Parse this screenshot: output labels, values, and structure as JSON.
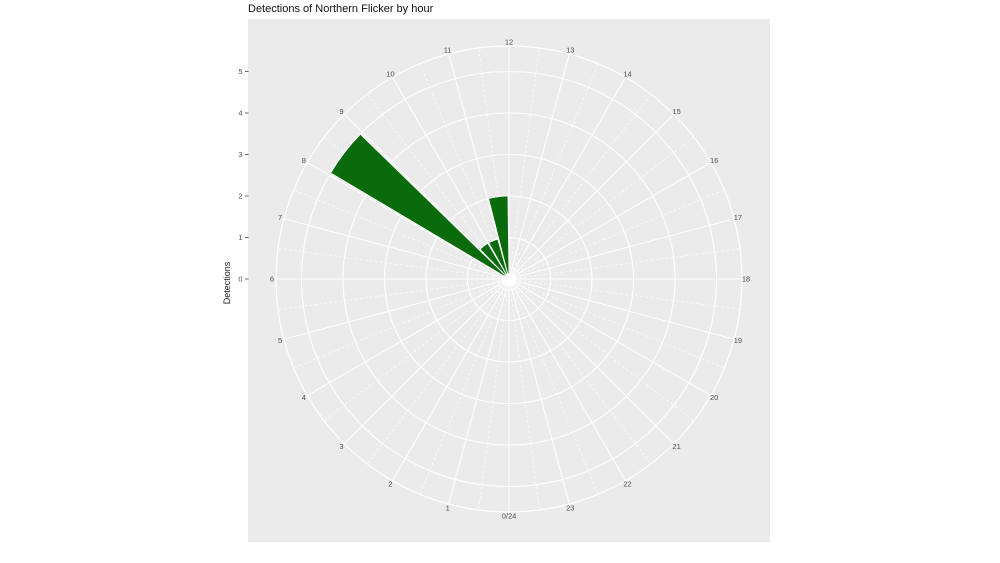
{
  "figure": {
    "title": "Detections of Northern Flicker by hour",
    "y_axis_title": "Detections"
  },
  "colors": {
    "page_bg": "#ffffff",
    "panel_bg": "#EBEBEB",
    "grid_major": "#ffffff",
    "grid_minor": "#ffffff",
    "bar_fill": "#0A6B0C",
    "bar_stroke": "#ffffff",
    "axis_text": "#4d4d4d",
    "tick_mark": "#666666",
    "title_text": "#111111"
  },
  "chart_data": {
    "type": "polar_bar",
    "title": "Detections of Northern Flicker by hour",
    "ylabel": "Detections",
    "theta": "hour of day, 0/24 at bottom, values increase clockwise, 12 at top",
    "hour_labels": [
      "0/24",
      "1",
      "2",
      "3",
      "4",
      "5",
      "6",
      "7",
      "8",
      "9",
      "10",
      "11",
      "12",
      "13",
      "14",
      "15",
      "16",
      "17",
      "18",
      "19",
      "20",
      "21",
      "22",
      "23"
    ],
    "radial_ticks": [
      0,
      1,
      2,
      3,
      4,
      5
    ],
    "rlim": [
      0,
      5.6
    ],
    "grid": {
      "major_radial": "solid, every hour",
      "minor_radial": "dashed, every half hour",
      "circles": "solid at each detection count 1-5 plus outer boundary"
    },
    "counts_by_hour": [
      0,
      0,
      0,
      0,
      0,
      0,
      0,
      0,
      5,
      1,
      1,
      2,
      0,
      0,
      0,
      0,
      0,
      0,
      0,
      0,
      0,
      0,
      0,
      0
    ],
    "bins": [
      {
        "hour_start": 8,
        "hour_end": 9,
        "detections": 5
      },
      {
        "hour_start": 9,
        "hour_end": 10,
        "detections": 1
      },
      {
        "hour_start": 10,
        "hour_end": 11,
        "detections": 1
      },
      {
        "hour_start": 11,
        "hour_end": 12,
        "detections": 2
      }
    ]
  }
}
